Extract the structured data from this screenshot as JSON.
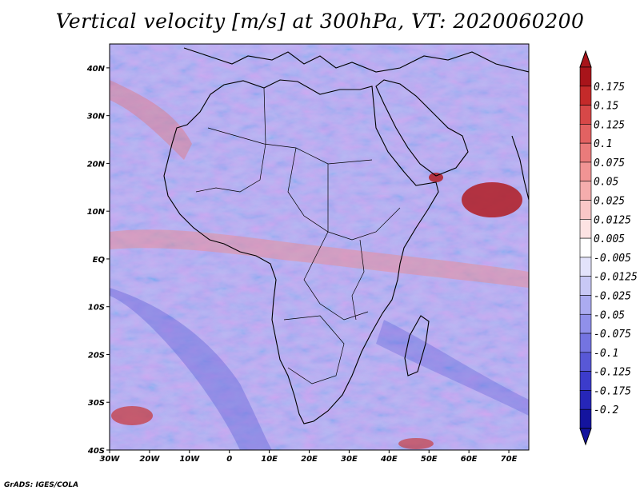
{
  "title": "Vertical velocity [m/s] at 300hPa, VT: 2020060200",
  "credit": "GrADS: IGES/COLA",
  "map": {
    "lat_labels": [
      "40N",
      "30N",
      "20N",
      "10N",
      "EQ",
      "10S",
      "20S",
      "30S",
      "40S"
    ],
    "lat_values": [
      40,
      30,
      20,
      10,
      0,
      -10,
      -20,
      -30,
      -40
    ],
    "lon_labels": [
      "30W",
      "20W",
      "10W",
      "0",
      "10E",
      "20E",
      "30E",
      "40E",
      "50E",
      "60E",
      "70E"
    ],
    "lon_values": [
      -30,
      -20,
      -10,
      0,
      10,
      20,
      30,
      40,
      50,
      60,
      70
    ],
    "lat_range": [
      -40,
      45
    ],
    "lon_range": [
      -30,
      75
    ]
  },
  "colorbar": {
    "labels": [
      "0.175",
      "0.15",
      "0.125",
      "0.1",
      "0.075",
      "0.05",
      "0.025",
      "0.0125",
      "0.005",
      "-0.005",
      "-0.0125",
      "-0.025",
      "-0.05",
      "-0.075",
      "-0.1",
      "-0.125",
      "-0.175",
      "-0.2"
    ],
    "colors": [
      "#a8141a",
      "#c42a2a",
      "#d74848",
      "#e26262",
      "#ea7b7b",
      "#f19494",
      "#f5adad",
      "#f9c7c7",
      "#fde3e3",
      "#ffffff",
      "#e3e3fb",
      "#c8c8f5",
      "#ababf0",
      "#9090ea",
      "#7474e1",
      "#5858d6",
      "#3c3ccb",
      "#2626b8",
      "#14149e"
    ]
  },
  "colors": {
    "top_arrow": "#a8141a",
    "bottom_arrow": "#14149e",
    "coast": "#000000"
  }
}
